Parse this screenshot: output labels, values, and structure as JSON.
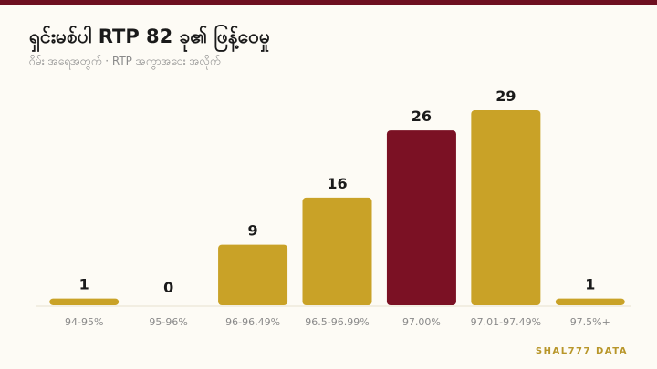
{
  "chart_data": {
    "type": "bar",
    "title": "ရှင်းမစ်ပါ RTP 82 ခု၏ ဖြန့်ဝေမှု",
    "subtitle": "ဂိမ်း အရေအတွက် · RTP အကွာအဝေး အလိုက်",
    "categories": [
      "94-95%",
      "95-96%",
      "96-96.49%",
      "96.5-96.99%",
      "97.00%",
      "97.01-97.49%",
      "97.5%+"
    ],
    "values": [
      1,
      0,
      9,
      16,
      26,
      29,
      1
    ],
    "colors": [
      "#c9a227",
      "#c9a227",
      "#c9a227",
      "#c9a227",
      "#7b1124",
      "#c9a227",
      "#c9a227"
    ],
    "footer": "SHAL777 DATA"
  }
}
